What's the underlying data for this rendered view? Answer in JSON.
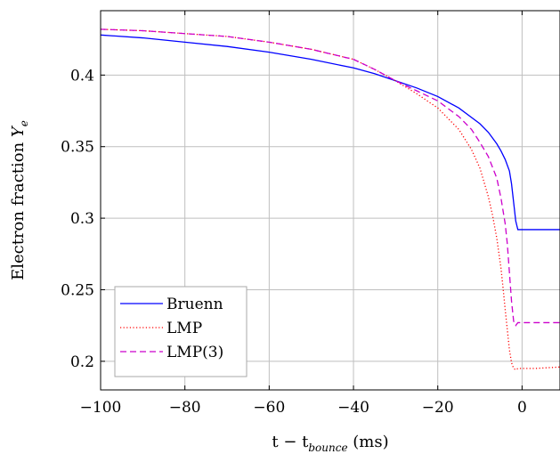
{
  "chart_data": {
    "type": "line",
    "title": "",
    "xlabel": "t − t",
    "xlabel_sub": "bounce",
    "xlabel_unit": " (ms)",
    "ylabel": "Electron fraction ",
    "ylabel_var": "Y",
    "ylabel_sub": "e",
    "xlim": [
      -100,
      9
    ],
    "ylim": [
      0.18,
      0.445
    ],
    "x_ticks": [
      -100,
      -80,
      -60,
      -40,
      -20,
      0
    ],
    "x_tick_labels": [
      "−100",
      "−80",
      "−60",
      "−40",
      "−20",
      "0"
    ],
    "y_ticks": [
      0.2,
      0.25,
      0.3,
      0.35,
      0.4
    ],
    "y_tick_labels": [
      "0.2",
      "0.25",
      "0.3",
      "0.35",
      "0.4"
    ],
    "grid": true,
    "legend_position": "bottom-left",
    "series": [
      {
        "name": "Bruenn",
        "color": "#0000ff",
        "style": "solid",
        "x": [
          -100,
          -90,
          -80,
          -70,
          -60,
          -50,
          -40,
          -35,
          -30,
          -25,
          -20,
          -15,
          -10,
          -8,
          -6,
          -5,
          -4,
          -3,
          -2.5,
          -2,
          -1.5,
          -1,
          -0.5,
          0,
          2,
          5,
          9
        ],
        "y": [
          0.428,
          0.426,
          0.423,
          0.42,
          0.416,
          0.411,
          0.405,
          0.401,
          0.396,
          0.391,
          0.385,
          0.377,
          0.366,
          0.36,
          0.352,
          0.347,
          0.341,
          0.333,
          0.324,
          0.311,
          0.298,
          0.292,
          0.292,
          0.292,
          0.292,
          0.292,
          0.292
        ]
      },
      {
        "name": "LMP",
        "color": "#ff0000",
        "style": "dotted",
        "x": [
          -100,
          -90,
          -80,
          -70,
          -60,
          -50,
          -40,
          -35,
          -30,
          -25,
          -20,
          -15,
          -12,
          -10,
          -8,
          -7,
          -6,
          -5,
          -4.5,
          -4,
          -3.5,
          -3,
          -2.5,
          -2,
          -1.5,
          -1,
          0,
          3,
          9
        ],
        "y": [
          0.432,
          0.431,
          0.429,
          0.427,
          0.423,
          0.418,
          0.411,
          0.404,
          0.396,
          0.387,
          0.377,
          0.362,
          0.348,
          0.335,
          0.315,
          0.302,
          0.286,
          0.265,
          0.251,
          0.236,
          0.222,
          0.208,
          0.199,
          0.195,
          0.194,
          0.195,
          0.195,
          0.195,
          0.196
        ]
      },
      {
        "name": "LMP(3)",
        "color": "#cc00cc",
        "style": "dashed",
        "x": [
          -100,
          -90,
          -80,
          -70,
          -60,
          -50,
          -40,
          -35,
          -30,
          -25,
          -20,
          -15,
          -12,
          -10,
          -8,
          -6,
          -5,
          -4,
          -3.5,
          -3,
          -2.5,
          -2,
          -1.5,
          -1,
          0,
          3,
          9
        ],
        "y": [
          0.432,
          0.431,
          0.429,
          0.427,
          0.423,
          0.418,
          0.411,
          0.404,
          0.396,
          0.389,
          0.382,
          0.371,
          0.362,
          0.353,
          0.343,
          0.328,
          0.314,
          0.296,
          0.282,
          0.262,
          0.242,
          0.228,
          0.225,
          0.227,
          0.227,
          0.227,
          0.227
        ]
      }
    ]
  }
}
